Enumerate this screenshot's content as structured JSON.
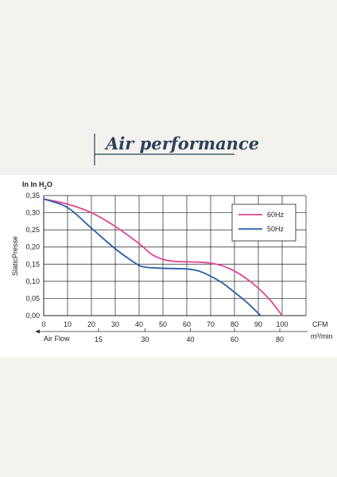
{
  "header": {
    "title": "Air performance"
  },
  "chart_data": {
    "type": "line",
    "title": "",
    "ylabel": "SlaticPresse",
    "y_unit": {
      "main": "In In H",
      "sub": "2",
      "tail": "O"
    },
    "xlabel_cfm": "CFM",
    "xlabel_m3": "m³/min",
    "airflow_label": "Air Flow",
    "xlim": [
      0,
      110
    ],
    "ylim": [
      0,
      0.35
    ],
    "x_ticks": [
      "0",
      "10",
      "20",
      "30",
      "40",
      "50",
      "60",
      "70",
      "80",
      "90",
      "100"
    ],
    "y_ticks": [
      "0,00",
      "0,05",
      "0,10",
      "0,15",
      "0,20",
      "0,25",
      "0,30",
      "0,35"
    ],
    "m3_ticks": [
      {
        "label": "15",
        "cfm": 23
      },
      {
        "label": "30",
        "cfm": 42.5
      },
      {
        "label": "40",
        "cfm": 61.5
      },
      {
        "label": "60",
        "cfm": 80
      },
      {
        "label": "80",
        "cfm": 99
      }
    ],
    "grid": true,
    "legend_position": "top-right",
    "series": [
      {
        "name": "60Hz",
        "color": "#e0468f",
        "x": [
          0,
          10,
          20,
          30,
          40,
          45,
          50,
          55,
          60,
          65,
          70,
          75,
          80,
          85,
          90,
          95,
          100
        ],
        "y": [
          0.34,
          0.325,
          0.3,
          0.26,
          0.21,
          0.18,
          0.164,
          0.158,
          0.157,
          0.156,
          0.153,
          0.145,
          0.13,
          0.108,
          0.08,
          0.045,
          0.0
        ]
      },
      {
        "name": "50Hz",
        "color": "#2c5fa8",
        "x": [
          0,
          10,
          20,
          30,
          38,
          42,
          50,
          60,
          65,
          70,
          75,
          80,
          85,
          88,
          91
        ],
        "y": [
          0.34,
          0.315,
          0.255,
          0.195,
          0.155,
          0.142,
          0.138,
          0.136,
          0.13,
          0.115,
          0.095,
          0.068,
          0.04,
          0.02,
          0.0
        ]
      }
    ]
  }
}
